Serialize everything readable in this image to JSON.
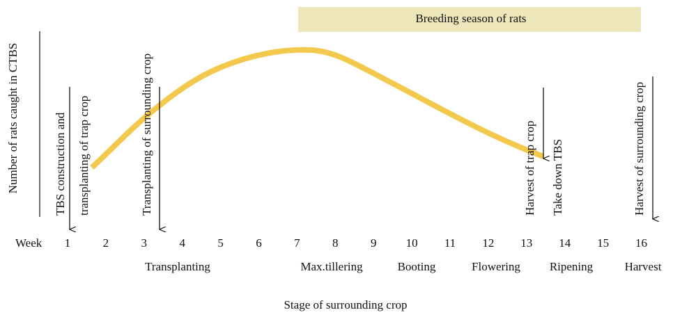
{
  "banner": "Breeding season of rats",
  "y_axis_label": "Number of rats caught in CTBS",
  "x_axis_label": "Stage of surrounding crop",
  "week_label": "Week",
  "weeks": [
    "1",
    "2",
    "3",
    "4",
    "5",
    "6",
    "7",
    "8",
    "9",
    "10",
    "11",
    "12",
    "13",
    "14",
    "15",
    "16"
  ],
  "stages": [
    "Transplanting",
    "Max.tillering",
    "Booting",
    "Flowering",
    "Ripening",
    "Harvest"
  ],
  "annotations": [
    {
      "lines": [
        "TBS construction and",
        "transplanting of trap crop"
      ]
    },
    {
      "lines": [
        "Transplanting of surrounding crop"
      ]
    },
    {
      "lines": [
        "Harvest of trap crop"
      ]
    },
    {
      "lines": [
        "Take down TBS"
      ]
    },
    {
      "lines": [
        "Harvest of surrounding crop"
      ]
    }
  ]
}
